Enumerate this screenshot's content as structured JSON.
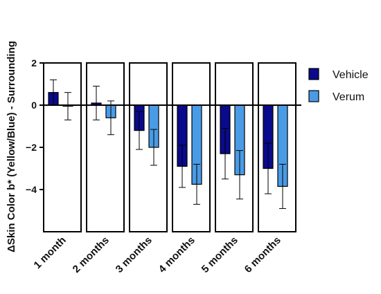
{
  "chart_data": {
    "type": "bar",
    "title": "",
    "xlabel": "",
    "ylabel": "ΔSkin Color b* (Yellow/Blue) - Surrounding",
    "categories": [
      "1 month",
      "2 months",
      "3 months",
      "4 months",
      "5 months",
      "6 months"
    ],
    "series": [
      {
        "name": "Vehicle",
        "color": "#0a0a8c",
        "values": [
          0.6,
          0.1,
          -1.2,
          -2.9,
          -2.3,
          -3.0
        ],
        "error": [
          0.6,
          0.8,
          0.9,
          1.0,
          1.2,
          1.2
        ]
      },
      {
        "name": "Verum",
        "color": "#4a9be6",
        "values": [
          -0.05,
          -0.6,
          -2.0,
          -3.75,
          -3.3,
          -3.85
        ],
        "error": [
          0.65,
          0.8,
          0.85,
          0.95,
          1.15,
          1.05
        ]
      }
    ],
    "ylim": [
      -5.8,
      2.0
    ],
    "yticks": [
      2,
      0,
      -2,
      -4
    ],
    "ytick_labels": [
      "2",
      "0",
      "−2",
      "−4"
    ],
    "legend_position": "right",
    "grid": false
  }
}
